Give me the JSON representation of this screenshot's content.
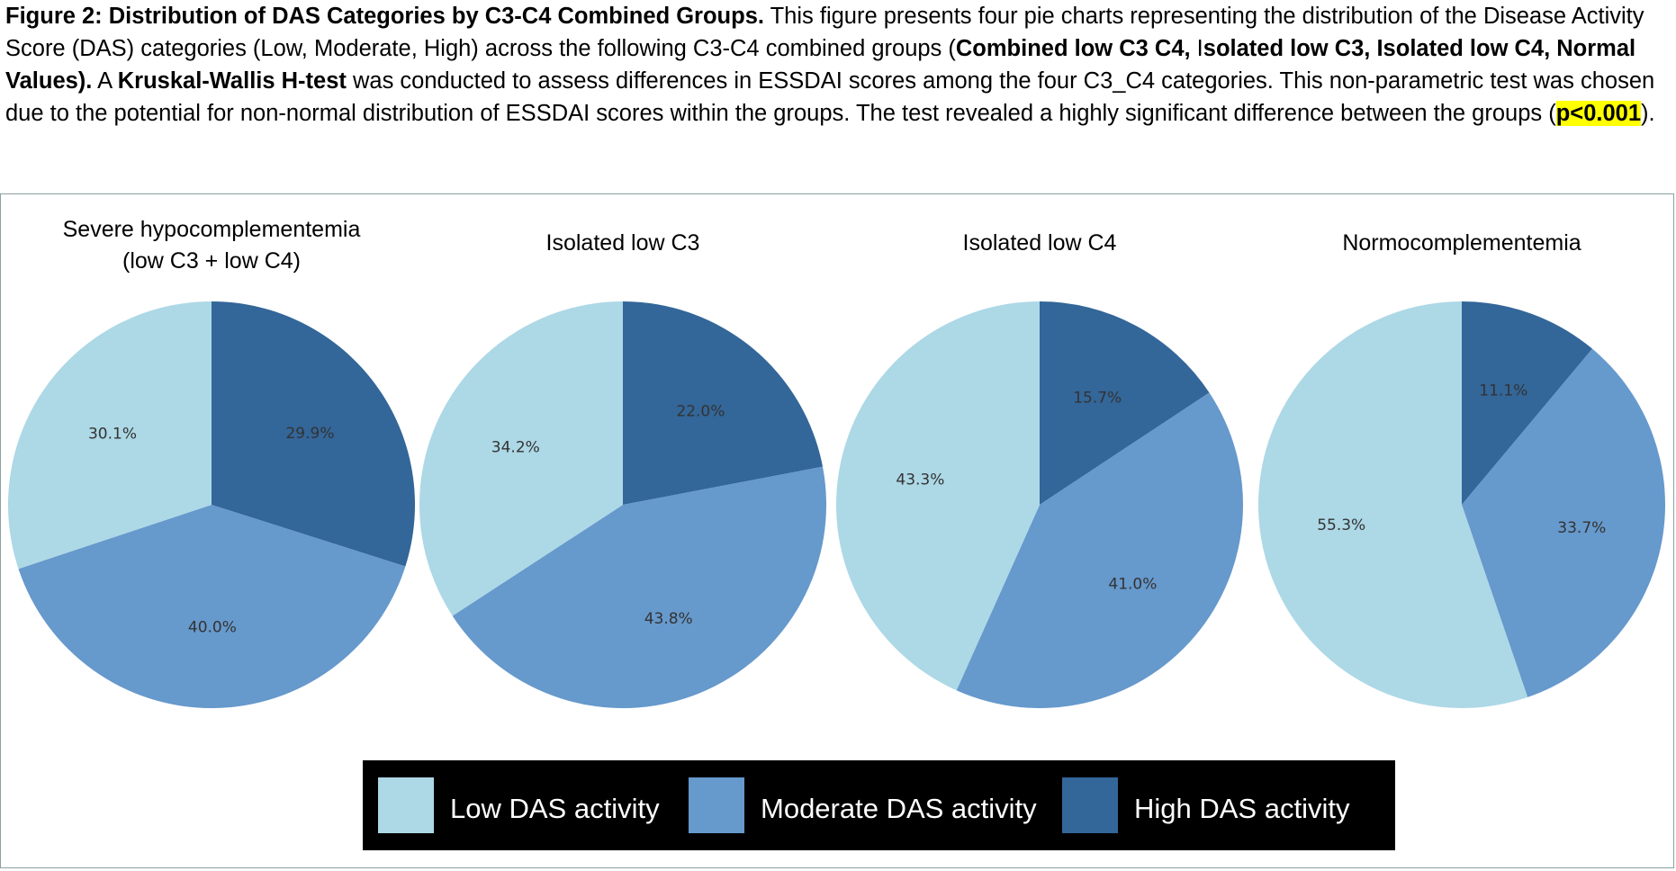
{
  "caption": {
    "fig_label": "Figure 2: Distribution of DAS Categories by C3-C4 Combined Groups.",
    "text_1": " This figure presents four pie charts representing the distribution of the Disease Activity Score (DAS) categories (Low, Moderate, High) across the following C3-C4 combined groups (",
    "bold_groups_1": "Combined low C3 C4,",
    "text_2": " I",
    "bold_groups_2": "solated low C3, Isolated low C4, Normal Values).",
    "text_3": " A ",
    "bold_test": "Kruskal-Wallis H-test",
    "text_4": " was conducted to assess differences in ESSDAI scores among the four C3_C4 categories. This non-parametric test was chosen due to the potential for non-normal distribution of ESSDAI scores within the groups. The test revealed a highly significant difference between the groups (",
    "pvalue": "p<0.001",
    "text_5": ")."
  },
  "colors": {
    "low": "#add8e6",
    "moderate": "#6699cc",
    "high": "#336699",
    "legend_bg": "#000000",
    "legend_text": "#ffffff",
    "label_text": "#333333"
  },
  "chart_data": {
    "type": "pie",
    "categories": [
      "Low DAS activity",
      "Moderate DAS activity",
      "High DAS activity"
    ],
    "charts": [
      {
        "title_lines": [
          "Severe hypocomplementemia",
          "(low C3 + low C4)"
        ],
        "values": [
          30.1,
          40.0,
          29.9
        ],
        "labels": [
          "30.1%",
          "40.0%",
          "29.9%"
        ]
      },
      {
        "title_lines": [
          "Isolated low C3"
        ],
        "values": [
          34.2,
          43.8,
          22.0
        ],
        "labels": [
          "34.2%",
          "43.8%",
          "22.0%"
        ]
      },
      {
        "title_lines": [
          "Isolated low C4"
        ],
        "values": [
          43.3,
          41.0,
          15.7
        ],
        "labels": [
          "43.3%",
          "41.0%",
          "15.7%"
        ]
      },
      {
        "title_lines": [
          "Normocomplementemia"
        ],
        "values": [
          55.3,
          33.7,
          11.1
        ],
        "labels": [
          "55.3%",
          "33.7%",
          "11.1%"
        ]
      }
    ],
    "legend": {
      "items": [
        "Low DAS activity",
        "Moderate DAS activity",
        "High DAS activity"
      ],
      "placement": "bottom-center"
    }
  }
}
